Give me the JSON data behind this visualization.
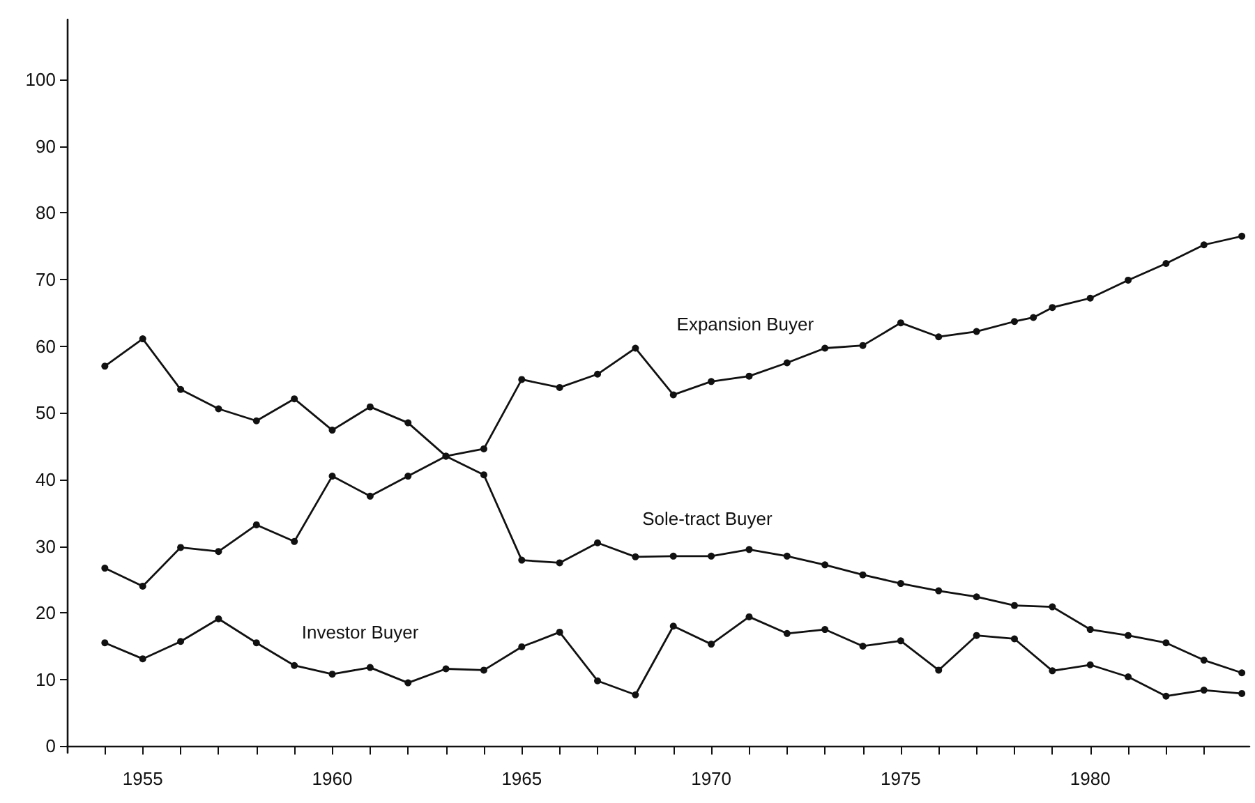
{
  "chart_data": {
    "type": "line",
    "x": [
      1954,
      1955,
      1956,
      1957,
      1958,
      1959,
      1960,
      1961,
      1962,
      1963,
      1964,
      1965,
      1966,
      1967,
      1968,
      1969,
      1970,
      1971,
      1972,
      1973,
      1974,
      1975,
      1976,
      1977,
      1978,
      1979,
      1980,
      1981,
      1982,
      1983,
      1984
    ],
    "series": [
      {
        "name": "Expansion Buyer",
        "color": "#111111",
        "x": [
          1954,
          1955,
          1956,
          1957,
          1958,
          1959,
          1960,
          1961,
          1962,
          1963,
          1964,
          1965,
          1966,
          1967,
          1968,
          1969,
          1970,
          1971,
          1972,
          1973,
          1974,
          1975,
          1976,
          1977,
          1978,
          1978.5,
          1979,
          1980,
          1981,
          1982,
          1983,
          1984
        ],
        "values": [
          26.7,
          24.0,
          29.8,
          29.2,
          33.2,
          30.7,
          40.5,
          37.5,
          40.5,
          43.5,
          44.6,
          55.0,
          53.8,
          55.8,
          59.7,
          52.7,
          54.7,
          55.5,
          57.5,
          59.7,
          60.1,
          63.5,
          61.4,
          62.2,
          63.7,
          64.3,
          65.8,
          67.2,
          69.9,
          72.4,
          75.2,
          76.5
        ]
      },
      {
        "name": "Sole-tract Buyer",
        "color": "#111111",
        "values": [
          57.0,
          61.1,
          53.5,
          50.6,
          48.8,
          52.1,
          47.4,
          50.9,
          48.5,
          43.5,
          40.7,
          27.9,
          27.5,
          30.5,
          28.4,
          28.5,
          28.5,
          29.5,
          28.5,
          27.2,
          25.7,
          24.4,
          23.3,
          22.4,
          21.1,
          20.9,
          17.5,
          16.6,
          15.5,
          12.9,
          11.0
        ]
      },
      {
        "name": "Investor Buyer",
        "color": "#111111",
        "values": [
          15.5,
          13.1,
          15.7,
          19.1,
          15.5,
          12.1,
          10.8,
          11.8,
          9.5,
          11.6,
          11.4,
          14.9,
          17.1,
          9.8,
          7.7,
          18.0,
          15.3,
          19.4,
          16.9,
          17.5,
          15.0,
          15.8,
          11.4,
          16.6,
          16.1,
          11.3,
          12.2,
          10.4,
          7.5,
          8.4,
          7.9
        ]
      }
    ],
    "xlim": [
      1953,
      1984.2
    ],
    "ylim": [
      -1,
      109
    ],
    "xticks": [
      {
        "value": 1954,
        "label": null
      },
      1955,
      {
        "value": 1956,
        "label": null
      },
      {
        "value": 1957,
        "label": null
      },
      {
        "value": 1958,
        "label": null
      },
      {
        "value": 1959,
        "label": null
      },
      1960,
      {
        "value": 1961,
        "label": null
      },
      {
        "value": 1962,
        "label": null
      },
      {
        "value": 1963,
        "label": null
      },
      {
        "value": 1964,
        "label": null
      },
      1965,
      {
        "value": 1966,
        "label": null
      },
      {
        "value": 1967,
        "label": null
      },
      {
        "value": 1968,
        "label": null
      },
      {
        "value": 1969,
        "label": null
      },
      1970,
      {
        "value": 1971,
        "label": null
      },
      {
        "value": 1972,
        "label": null
      },
      {
        "value": 1973,
        "label": null
      },
      {
        "value": 1974,
        "label": null
      },
      1975,
      {
        "value": 1976,
        "label": null
      },
      {
        "value": 1977,
        "label": null
      },
      {
        "value": 1978,
        "label": null
      },
      {
        "value": 1979,
        "label": null
      },
      1980,
      {
        "value": 1981,
        "label": null
      },
      {
        "value": 1982,
        "label": null
      },
      {
        "value": 1983,
        "label": null
      }
    ],
    "yticks": [
      0,
      10,
      20,
      30,
      40,
      50,
      60,
      70,
      80,
      90,
      100
    ],
    "grid": false,
    "legend": false,
    "marker": "circle",
    "line_style": "solid"
  }
}
